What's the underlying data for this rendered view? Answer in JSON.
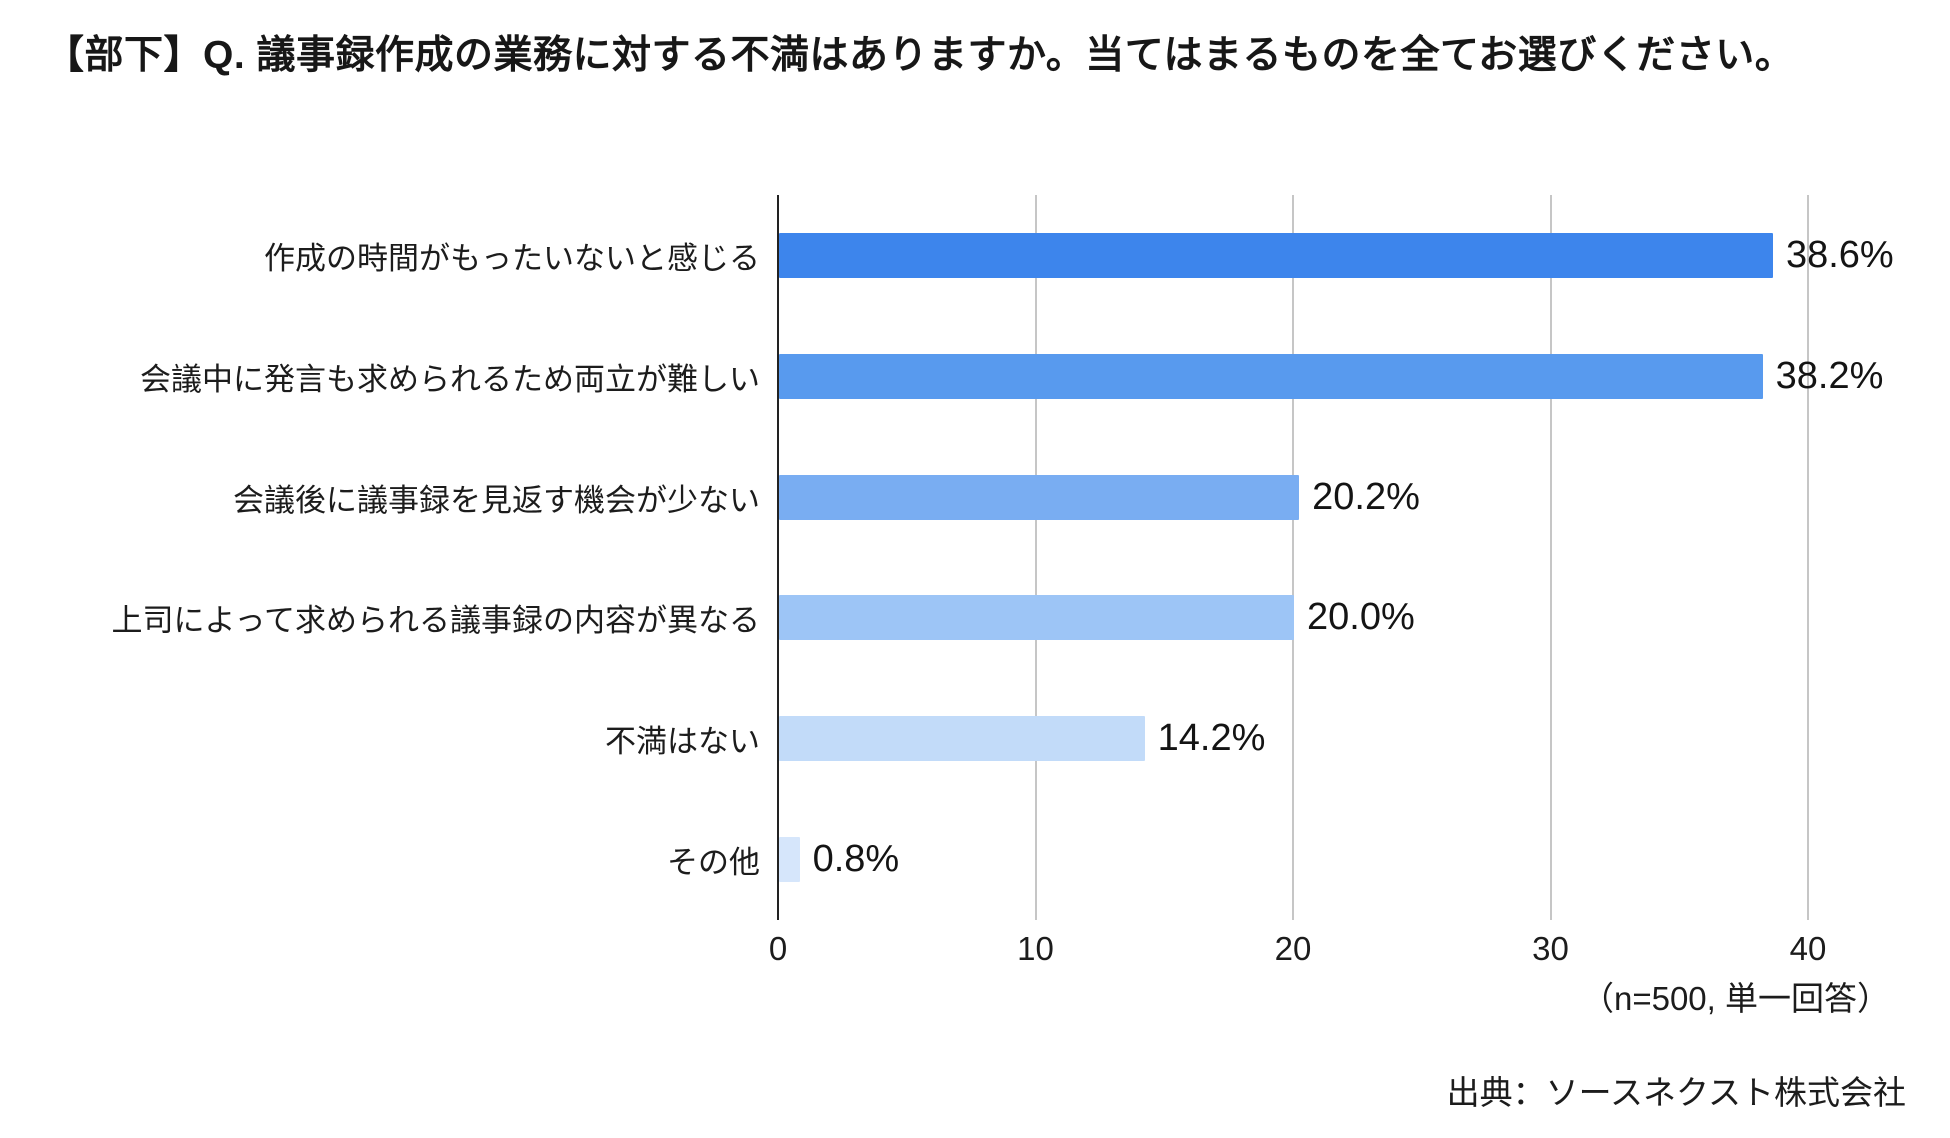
{
  "title": "【部下】Q. 議事録作成の業務に対する不満はありますか。当てはまるものを全てお選びください。",
  "note": "（n=500, 単一回答）",
  "source": "出典：ソースネクスト株式会社",
  "chart_data": {
    "type": "bar",
    "orientation": "horizontal",
    "title": "【部下】Q. 議事録作成の業務に対する不満はありますか。当てはまるものを全てお選びください。",
    "categories": [
      "作成の時間がもったいないと感じる",
      "会議中に発言も求められるため両立が難しい",
      "会議後に議事録を見返す機会が少ない",
      "上司によって求められる議事録の内容が異なる",
      "不満はない",
      "その他"
    ],
    "values": [
      38.6,
      38.2,
      20.2,
      20.0,
      14.2,
      0.8
    ],
    "value_labels": [
      "38.6%",
      "38.2%",
      "20.2%",
      "20.0%",
      "14.2%",
      "0.8%"
    ],
    "bar_colors": [
      "#3d85ec",
      "#589aee",
      "#79adf2",
      "#9dc5f6",
      "#c2dbf9",
      "#d6e6fb"
    ],
    "x_ticks": [
      0,
      10,
      20,
      30,
      40
    ],
    "x_tick_labels": [
      "0",
      "10",
      "20",
      "30",
      "40"
    ],
    "xlim": [
      0,
      42.8
    ],
    "xlabel": "",
    "ylabel": "",
    "grid": "vertical-only",
    "legend": "none",
    "axis_color": "#222222",
    "gridline_color": "#c6c6c6",
    "annotation": "（n=500, 単一回答）",
    "source": "出典：ソースネクスト株式会社"
  }
}
